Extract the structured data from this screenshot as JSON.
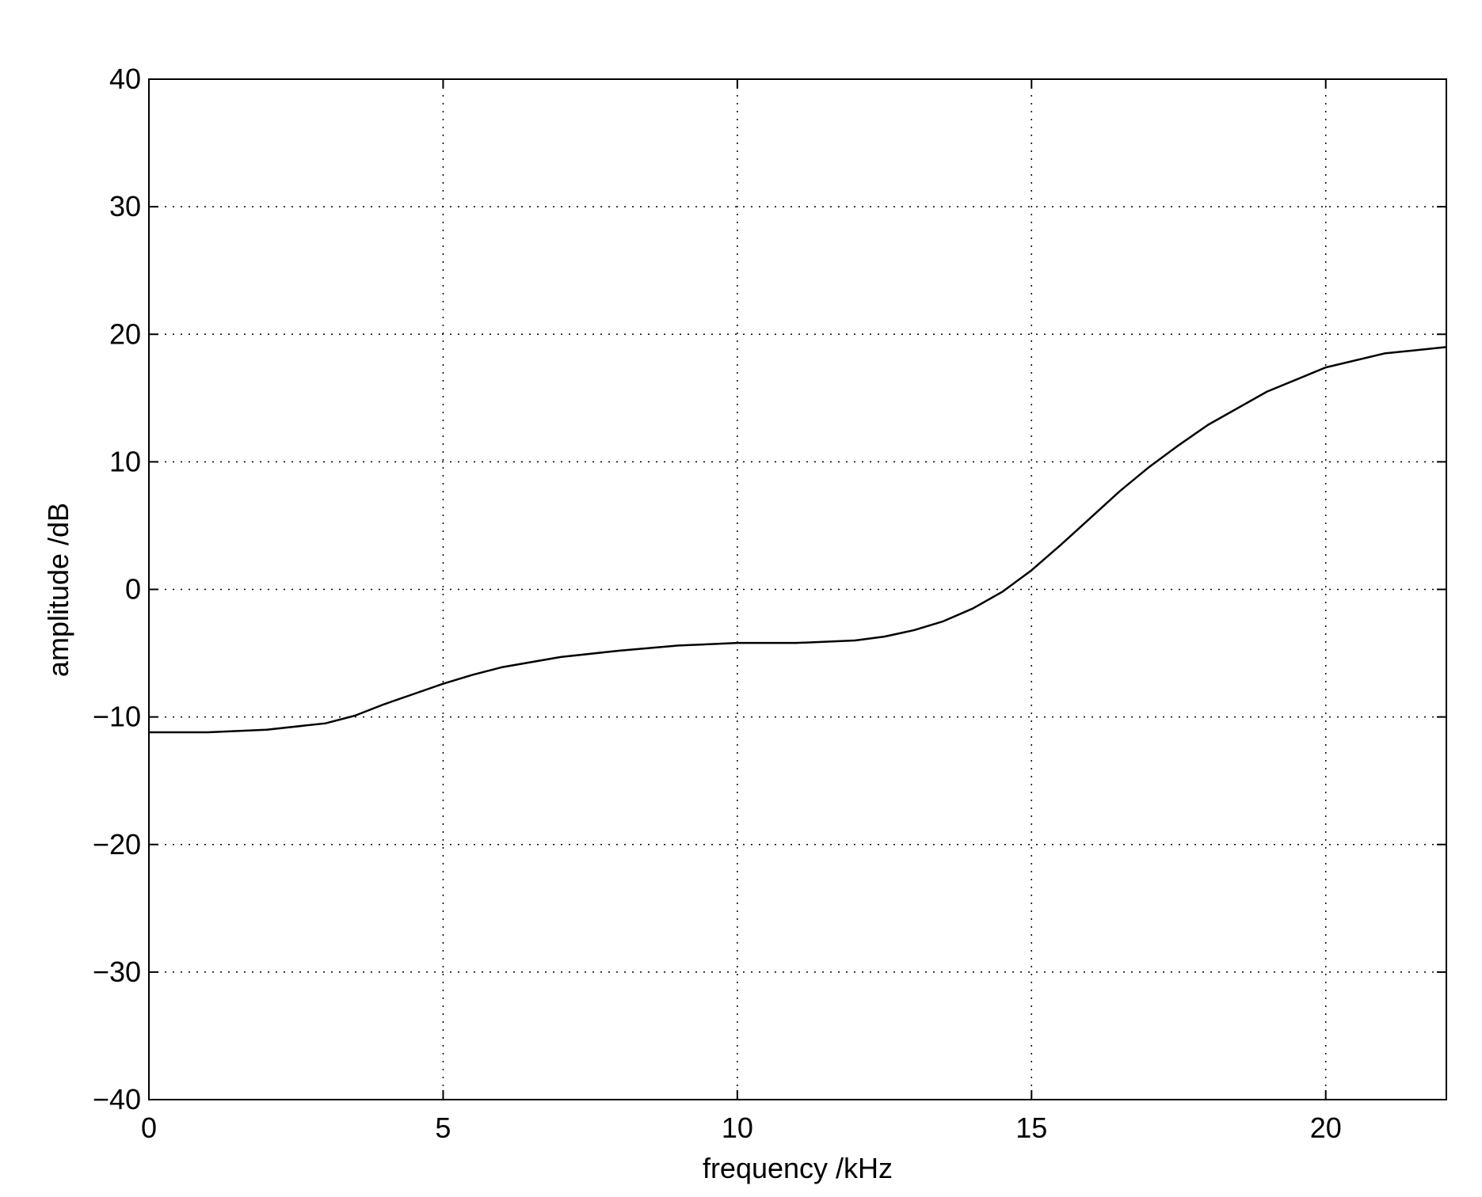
{
  "chart_data": {
    "type": "line",
    "x_label": "frequency /kHz",
    "y_label": "amplitude /dB",
    "x": [
      0,
      1,
      2,
      3,
      3.5,
      4,
      4.5,
      5,
      5.5,
      6,
      7,
      8,
      9,
      10,
      11,
      12,
      12.5,
      13,
      13.5,
      14,
      14.5,
      15,
      15.5,
      16,
      16.5,
      17,
      17.5,
      18,
      19,
      20,
      21,
      22.05
    ],
    "series": [
      {
        "color": "#000000",
        "values": [
          -11.2,
          -11.2,
          -11.0,
          -10.5,
          -9.9,
          -9.0,
          -8.2,
          -7.4,
          -6.7,
          -6.1,
          -5.3,
          -4.8,
          -4.4,
          -4.2,
          -4.2,
          -4.0,
          -3.7,
          -3.2,
          -2.5,
          -1.5,
          -0.2,
          1.5,
          3.5,
          5.6,
          7.7,
          9.6,
          11.3,
          12.9,
          15.5,
          17.4,
          18.5,
          19.0
        ]
      }
    ],
    "xlim": [
      0,
      22.05
    ],
    "ylim": [
      -40,
      40
    ],
    "xticks": [
      0,
      5,
      10,
      15,
      20
    ],
    "yticks": [
      {
        "value": -40,
        "label": "−40"
      },
      {
        "value": -30,
        "label": "−30"
      },
      {
        "value": -20,
        "label": "−20"
      },
      {
        "value": -10,
        "label": "−10"
      },
      0,
      10,
      20,
      30,
      40
    ],
    "grid": true
  }
}
